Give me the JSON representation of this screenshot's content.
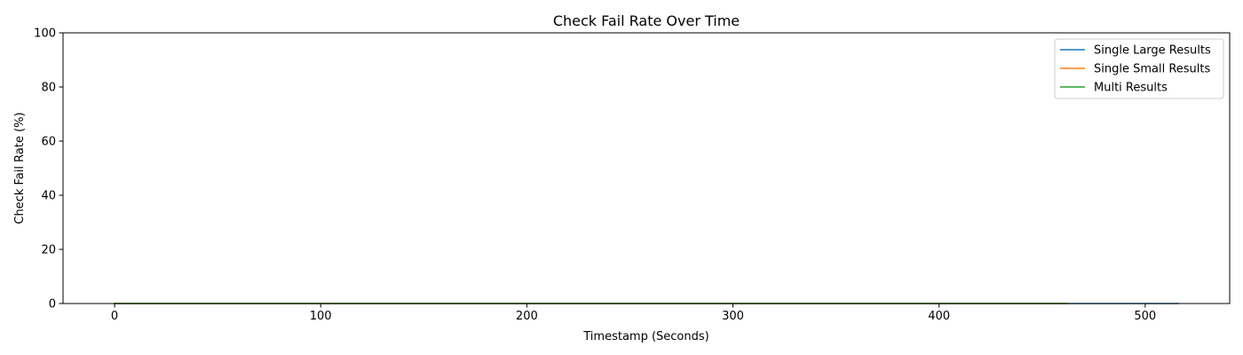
{
  "chart_data": {
    "type": "line",
    "title": "Check Fail Rate Over Time",
    "xlabel": "Timestamp (Seconds)",
    "ylabel": "Check Fail Rate (%)",
    "xlim": [
      -25,
      541
    ],
    "ylim": [
      0,
      100
    ],
    "xticks": [
      0,
      100,
      200,
      300,
      400,
      500
    ],
    "yticks": [
      0,
      20,
      40,
      60,
      80,
      100
    ],
    "grid": false,
    "legend_position": "top-right",
    "series": [
      {
        "name": "Single Large Results",
        "color": "#1f77b4",
        "x": [
          0,
          100,
          200,
          300,
          400,
          500,
          516
        ],
        "y": [
          0,
          0,
          0,
          0,
          0,
          0,
          0
        ]
      },
      {
        "name": "Single Small Results",
        "color": "#ff7f0e",
        "x": [
          0,
          100,
          200,
          300,
          400,
          462
        ],
        "y": [
          0,
          0,
          0,
          0,
          0,
          0
        ]
      },
      {
        "name": "Multi Results",
        "color": "#2ca02c",
        "x": [
          0,
          100,
          200,
          300,
          400,
          462
        ],
        "y": [
          0,
          0,
          0,
          0,
          0,
          0
        ]
      }
    ]
  }
}
